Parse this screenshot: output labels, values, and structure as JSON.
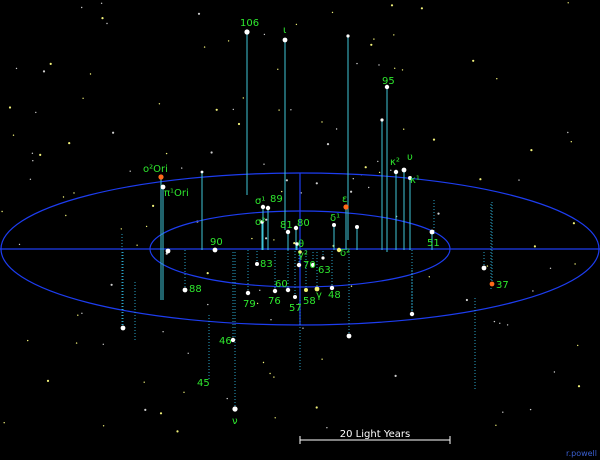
{
  "colors": {
    "background": "#000000",
    "ellipse": "#1d3df0",
    "stem_above": "#3fc6d8",
    "stem_below": "#2aa3c8",
    "star_white": "#ffffff",
    "star_orange": "#ff6a1a",
    "label_green": "#2ee82e",
    "faint_star": "#f2f27a"
  },
  "labels": {
    "n106": "106",
    "iota": "ι",
    "n95": "95",
    "kappa2": "κ²",
    "upsilon_top": "υ",
    "kappa1": "κ¹",
    "omicron2Ori": "ο²Ori",
    "pi1Ori": "π¹Ori",
    "sigma1": "σ¹",
    "n89": "89",
    "sigma2": "σ²",
    "epsilon": "ε",
    "delta1": "δ¹",
    "n81": "81",
    "n80": "80",
    "theta": "θ",
    "gamma2": "γ²",
    "delta2": "δ²",
    "n51": "51",
    "n90": "90",
    "n83": "83",
    "n70": "70",
    "n63": "63",
    "n88": "88",
    "n60": "60",
    "n76": "76",
    "n79": "79",
    "n57": "57",
    "n58": "58",
    "gamma": "γ",
    "n48": "48",
    "n37": "37",
    "n46": "46",
    "n45": "45",
    "nu": "ν"
  },
  "scale_bar": {
    "label": "20 Light Years"
  },
  "credit": "r.powell"
}
